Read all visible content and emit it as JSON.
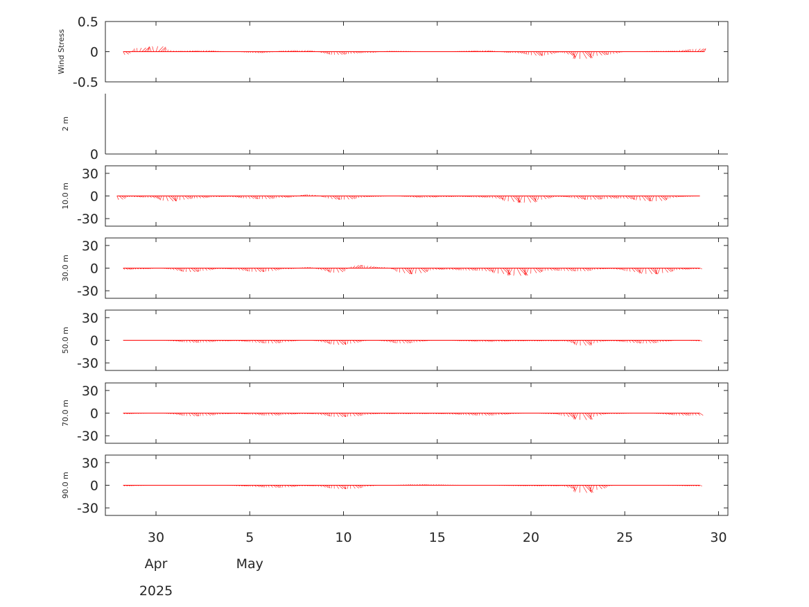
{
  "chart_data": {
    "type": "stick-vector-timeseries",
    "color": "#ff0000",
    "x_axis": {
      "range_days": [
        27.3,
        30.5
      ],
      "xlim_dates": [
        "2025-04-27",
        "2025-05-30"
      ],
      "ticks": [
        {
          "date": "2025-04-30",
          "label": "30"
        },
        {
          "date": "2025-05-05",
          "label": "5"
        },
        {
          "date": "2025-05-10",
          "label": "10"
        },
        {
          "date": "2025-05-15",
          "label": "15"
        },
        {
          "date": "2025-05-20",
          "label": "20"
        },
        {
          "date": "2025-05-25",
          "label": "25"
        },
        {
          "date": "2025-05-30",
          "label": "30"
        }
      ],
      "month_labels": [
        {
          "date": "2025-04-30",
          "label": "Apr"
        },
        {
          "date": "2025-05-05",
          "label": "May"
        }
      ],
      "year_label": {
        "date": "2025-04-30",
        "label": "2025"
      }
    },
    "panels": [
      {
        "ylabel": "Wind Stress",
        "ylim": [
          -0.5,
          0.5
        ],
        "yticks": [
          {
            "value": 0.5,
            "label": "0.5"
          },
          {
            "value": 0,
            "label": "0"
          },
          {
            "value": -0.5,
            "label": "-0.5"
          }
        ],
        "has_data": true,
        "start": "2025-04-28T06:00",
        "end": "2025-05-29T06:00",
        "envelope": [
          [
            "2025-04-28T06:00",
            -0.05
          ],
          [
            "2025-04-29T00:00",
            0.06
          ],
          [
            "2025-04-30T00:00",
            0.09
          ],
          [
            "2025-05-01T00:00",
            0.01
          ],
          [
            "2025-05-02T12:00",
            0.02
          ],
          [
            "2025-05-04T00:00",
            0.0
          ],
          [
            "2025-05-05T12:00",
            -0.02
          ],
          [
            "2025-05-07T00:00",
            0.02
          ],
          [
            "2025-05-08T00:00",
            0.02
          ],
          [
            "2025-05-09T12:00",
            -0.05
          ],
          [
            "2025-05-11T00:00",
            -0.02
          ],
          [
            "2025-05-12T12:00",
            0.01
          ],
          [
            "2025-05-15T00:00",
            0.0
          ],
          [
            "2025-05-17T12:00",
            0.02
          ],
          [
            "2025-05-19T00:00",
            -0.02
          ],
          [
            "2025-05-20T12:00",
            -0.07
          ],
          [
            "2025-05-21T12:00",
            -0.01
          ],
          [
            "2025-05-22T12:00",
            -0.12
          ],
          [
            "2025-05-24T00:00",
            -0.05
          ],
          [
            "2025-05-25T00:00",
            0.0
          ],
          [
            "2025-05-27T00:00",
            0.01
          ],
          [
            "2025-05-29T06:00",
            0.05
          ]
        ]
      },
      {
        "ylabel": "2 m",
        "ylim": [
          0,
          1
        ],
        "yticks": [
          {
            "value": 0,
            "label": "0"
          }
        ],
        "has_data": false
      },
      {
        "ylabel": "10.0 m",
        "ylim": [
          -40,
          40
        ],
        "yticks": [
          {
            "value": 30,
            "label": "30"
          },
          {
            "value": 0,
            "label": "0"
          },
          {
            "value": -30,
            "label": "-30"
          }
        ],
        "has_data": true,
        "start": "2025-04-27T22:00",
        "end": "2025-05-29T00:00",
        "envelope": [
          [
            "2025-04-27T22:00",
            -5
          ],
          [
            "2025-04-28T12:00",
            -1
          ],
          [
            "2025-04-29T12:00",
            -2
          ],
          [
            "2025-04-30T18:00",
            -7
          ],
          [
            "2025-05-02T00:00",
            -3
          ],
          [
            "2025-05-03T12:00",
            -1
          ],
          [
            "2025-05-05T12:00",
            -4
          ],
          [
            "2025-05-07T00:00",
            -2
          ],
          [
            "2025-05-08T00:00",
            2
          ],
          [
            "2025-05-09T18:00",
            -5
          ],
          [
            "2025-05-11T12:00",
            -1
          ],
          [
            "2025-05-12T12:00",
            0
          ],
          [
            "2025-05-14T00:00",
            -2
          ],
          [
            "2025-05-16T00:00",
            -1
          ],
          [
            "2025-05-17T12:00",
            -2
          ],
          [
            "2025-05-19T12:00",
            -9
          ],
          [
            "2025-05-21T12:00",
            -1
          ],
          [
            "2025-05-23T00:00",
            -5
          ],
          [
            "2025-05-24T12:00",
            -3
          ],
          [
            "2025-05-26T12:00",
            -7
          ],
          [
            "2025-05-28T00:00",
            -1
          ],
          [
            "2025-05-29T00:00",
            0
          ]
        ]
      },
      {
        "ylabel": "30.0 m",
        "ylim": [
          -40,
          40
        ],
        "yticks": [
          {
            "value": 30,
            "label": "30"
          },
          {
            "value": 0,
            "label": "0"
          },
          {
            "value": -30,
            "label": "-30"
          }
        ],
        "has_data": true,
        "start": "2025-04-28T06:00",
        "end": "2025-05-29T00:00",
        "envelope": [
          [
            "2025-04-28T06:00",
            -2
          ],
          [
            "2025-04-29T12:00",
            -1
          ],
          [
            "2025-04-30T00:00",
            0
          ],
          [
            "2025-05-01T18:00",
            -5
          ],
          [
            "2025-05-03T12:00",
            -1
          ],
          [
            "2025-05-05T12:00",
            -5
          ],
          [
            "2025-05-07T00:00",
            -1
          ],
          [
            "2025-05-08T00:00",
            1
          ],
          [
            "2025-05-09T12:00",
            -6
          ],
          [
            "2025-05-10T18:00",
            4
          ],
          [
            "2025-05-12T00:00",
            1
          ],
          [
            "2025-05-13T12:00",
            -8
          ],
          [
            "2025-05-15T00:00",
            -2
          ],
          [
            "2025-05-17T00:00",
            -3
          ],
          [
            "2025-05-19T06:00",
            -10
          ],
          [
            "2025-05-21T00:00",
            -3
          ],
          [
            "2025-05-22T12:00",
            -4
          ],
          [
            "2025-05-24T00:00",
            -1
          ],
          [
            "2025-05-26T12:00",
            -8
          ],
          [
            "2025-05-28T00:00",
            -2
          ],
          [
            "2025-05-29T00:00",
            -1
          ]
        ]
      },
      {
        "ylabel": "50.0 m",
        "ylim": [
          -40,
          40
        ],
        "yticks": [
          {
            "value": 30,
            "label": "30"
          },
          {
            "value": 0,
            "label": "0"
          },
          {
            "value": -30,
            "label": "-30"
          }
        ],
        "has_data": true,
        "start": "2025-04-28T06:00",
        "end": "2025-05-29T00:00",
        "envelope": [
          [
            "2025-04-28T06:00",
            0
          ],
          [
            "2025-04-30T00:00",
            0
          ],
          [
            "2025-05-02T00:00",
            -3
          ],
          [
            "2025-05-04T00:00",
            -1
          ],
          [
            "2025-05-06T00:00",
            -4
          ],
          [
            "2025-05-08T00:00",
            0
          ],
          [
            "2025-05-09T18:00",
            -6
          ],
          [
            "2025-05-11T12:00",
            0
          ],
          [
            "2025-05-13T00:00",
            -4
          ],
          [
            "2025-05-15T00:00",
            0
          ],
          [
            "2025-05-17T12:00",
            -2
          ],
          [
            "2025-05-20T00:00",
            -1
          ],
          [
            "2025-05-21T12:00",
            -1
          ],
          [
            "2025-05-22T18:00",
            -7
          ],
          [
            "2025-05-24T00:00",
            -1
          ],
          [
            "2025-05-26T00:00",
            -4
          ],
          [
            "2025-05-28T00:00",
            0
          ],
          [
            "2025-05-29T00:00",
            -1
          ]
        ]
      },
      {
        "ylabel": "70.0 m",
        "ylim": [
          -40,
          40
        ],
        "yticks": [
          {
            "value": 30,
            "label": "30"
          },
          {
            "value": 0,
            "label": "0"
          },
          {
            "value": -30,
            "label": "-30"
          }
        ],
        "has_data": true,
        "start": "2025-04-28T06:00",
        "end": "2025-05-29T00:00",
        "envelope": [
          [
            "2025-04-28T06:00",
            -1
          ],
          [
            "2025-04-30T00:00",
            0
          ],
          [
            "2025-05-02T00:00",
            -4
          ],
          [
            "2025-05-04T00:00",
            -1
          ],
          [
            "2025-05-06T00:00",
            -3
          ],
          [
            "2025-05-08T00:00",
            -1
          ],
          [
            "2025-05-09T18:00",
            -5
          ],
          [
            "2025-05-12T00:00",
            -1
          ],
          [
            "2025-05-14T12:00",
            -1
          ],
          [
            "2025-05-17T12:00",
            -3
          ],
          [
            "2025-05-20T00:00",
            0
          ],
          [
            "2025-05-21T00:00",
            -1
          ],
          [
            "2025-05-22T18:00",
            -9
          ],
          [
            "2025-05-24T00:00",
            -1
          ],
          [
            "2025-05-26T00:00",
            0
          ],
          [
            "2025-05-28T00:00",
            -3
          ],
          [
            "2025-05-29T00:00",
            -3
          ]
        ]
      },
      {
        "ylabel": "90.0 m",
        "ylim": [
          -40,
          40
        ],
        "yticks": [
          {
            "value": 30,
            "label": "30"
          },
          {
            "value": 0,
            "label": "0"
          },
          {
            "value": -30,
            "label": "-30"
          }
        ],
        "has_data": true,
        "start": "2025-04-28T06:00",
        "end": "2025-05-29T00:00",
        "envelope": [
          [
            "2025-04-28T06:00",
            -1
          ],
          [
            "2025-04-30T00:00",
            0
          ],
          [
            "2025-05-03T00:00",
            0
          ],
          [
            "2025-05-06T12:00",
            -3
          ],
          [
            "2025-05-08T00:00",
            -1
          ],
          [
            "2025-05-10T00:00",
            -5
          ],
          [
            "2025-05-12T00:00",
            0
          ],
          [
            "2025-05-14T00:00",
            1
          ],
          [
            "2025-05-17T00:00",
            0
          ],
          [
            "2025-05-20T00:00",
            -1
          ],
          [
            "2025-05-21T12:00",
            -1
          ],
          [
            "2025-05-22T18:00",
            -10
          ],
          [
            "2025-05-24T12:00",
            0
          ],
          [
            "2025-05-26T00:00",
            0
          ],
          [
            "2025-05-29T00:00",
            -1
          ]
        ]
      }
    ]
  }
}
